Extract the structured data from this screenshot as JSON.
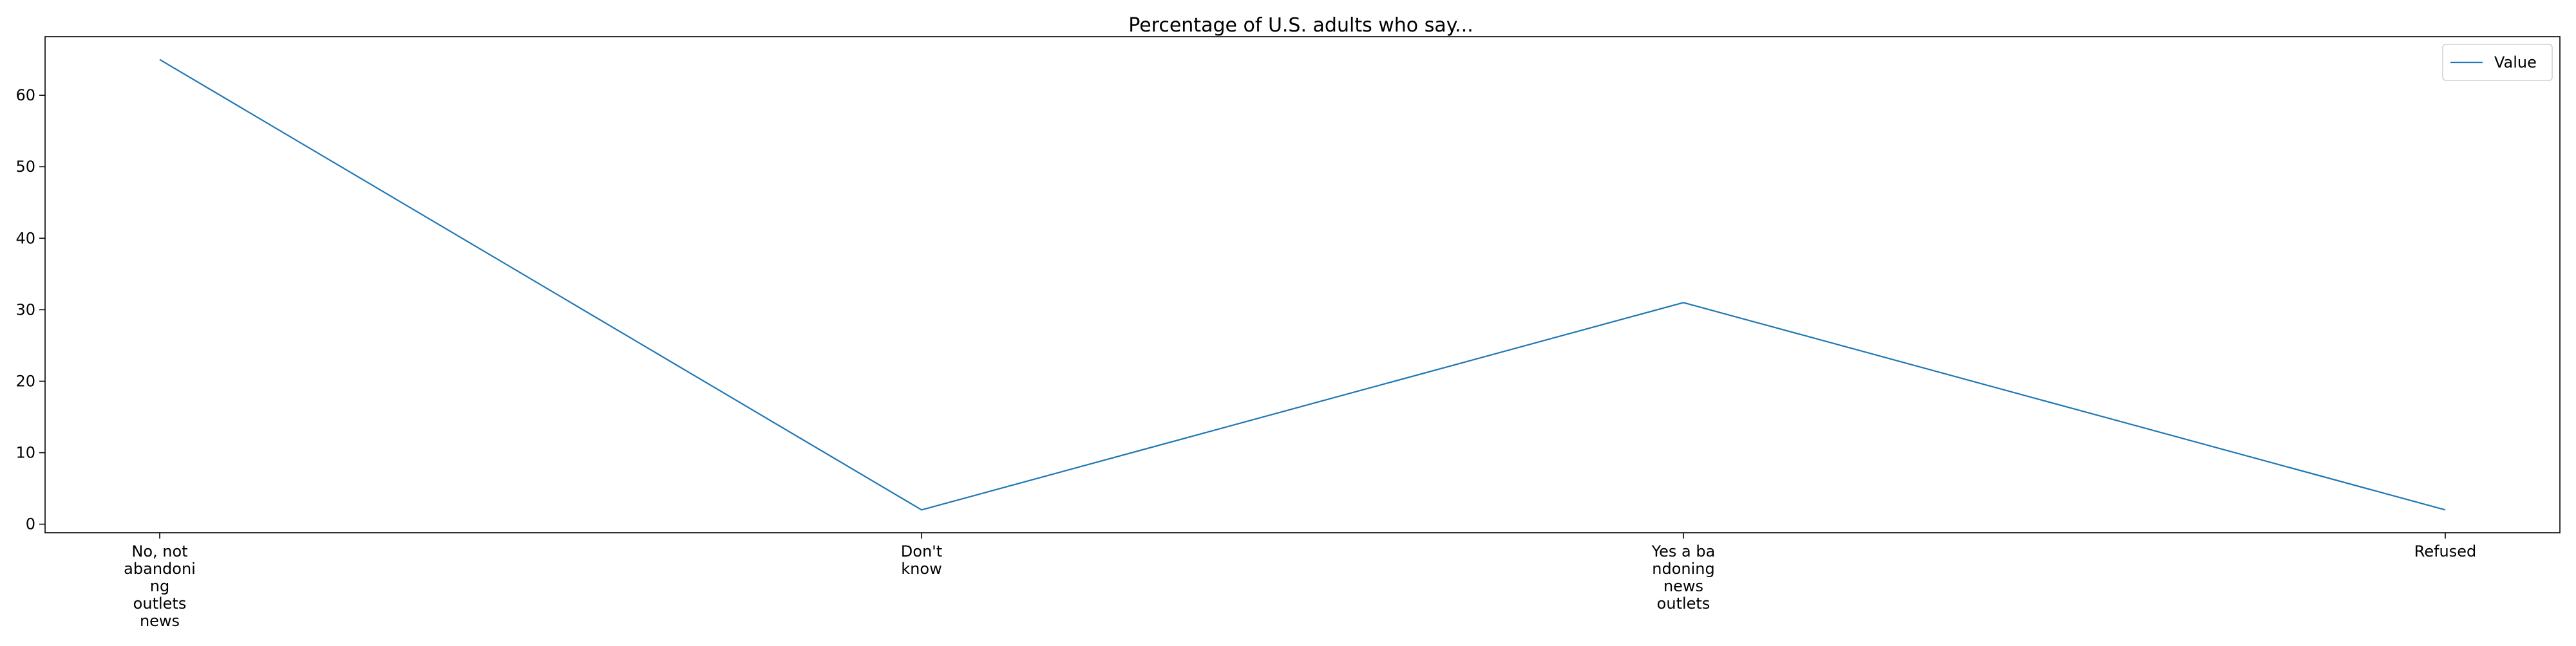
{
  "chart_data": {
    "type": "line",
    "title": "Percentage of U.S. adults who say...",
    "xlabel": "",
    "ylabel": "",
    "categories": [
      "No, not\nabandoni\nng\noutlets\nnews",
      "Don't\nknow",
      "Yes a ba\nndoning\nnews\noutlets",
      "Refused"
    ],
    "series": [
      {
        "name": "Value",
        "values": [
          65,
          2,
          31,
          2
        ]
      }
    ],
    "ylim": [
      -1.2,
      68.2
    ],
    "yticks": [
      0,
      10,
      20,
      30,
      40,
      50,
      60
    ],
    "ytick_labels": [
      "0",
      "10",
      "20",
      "30",
      "40",
      "50",
      "60"
    ],
    "grid": false,
    "legend": "top-right",
    "colors": {
      "line": "#1f77b4",
      "axes": "#000000",
      "background": "#ffffff"
    }
  }
}
